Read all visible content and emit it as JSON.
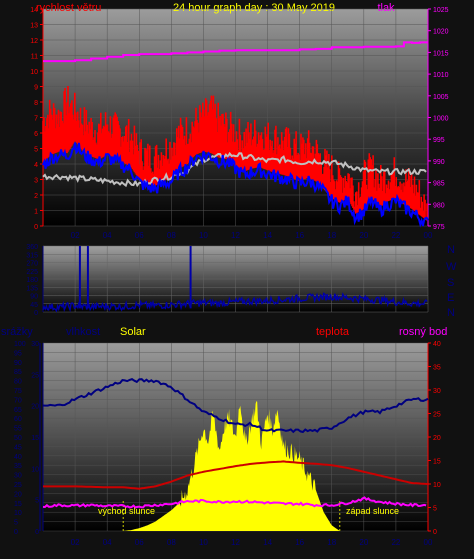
{
  "header": {
    "wind_title": "rychlost větru",
    "center_title": "24 hour graph day : 30 May 2019",
    "pressure_title": "tlak"
  },
  "side_letters": [
    "N",
    "W",
    "S",
    "E",
    "N"
  ],
  "bottom_labels": {
    "rain": "srážky",
    "humidity": "vlhkost",
    "solar": "Solar",
    "temperature": "teplota",
    "dewpoint": "rosný bod",
    "sunrise": "východ slunce",
    "sunset": "západ slunce"
  },
  "colors": {
    "wind_gust": "#ff0000",
    "wind_avg": "#0000ff",
    "wind_mean": "#c0c0c0",
    "pressure": "#ff00ff",
    "direction": "#0000aa",
    "humidity": "#000080",
    "temperature": "#cc0000",
    "dewpoint": "#ff00ff",
    "solar": "#ffff00",
    "title_yellow": "#ffff00",
    "red_text": "#ff0000",
    "axis_blue": "#000080",
    "axis_magenta": "#ff00ff"
  },
  "chart_data": [
    {
      "type": "line",
      "name": "wind-pressure",
      "x_ticks": [
        "02",
        "04",
        "06",
        "08",
        "10",
        "12",
        "14",
        "16",
        "18",
        "20",
        "22",
        "00"
      ],
      "xlim": [
        0,
        24
      ],
      "y_left_ticks": [
        "0",
        "1",
        "2",
        "3",
        "4",
        "5",
        "6",
        "7",
        "8",
        "9",
        "10",
        "11",
        "12",
        "13",
        "14"
      ],
      "ylim_left": [
        0,
        14
      ],
      "y_right_ticks": [
        "975",
        "980",
        "985",
        "990",
        "995",
        "1000",
        "1005",
        "1010",
        "1015",
        "1020",
        "1025"
      ],
      "ylim_right": [
        975,
        1025
      ],
      "series": [
        {
          "key": "gust",
          "x": [
            0,
            0.5,
            1,
            1.5,
            2,
            2.5,
            3,
            3.5,
            4,
            4.5,
            5,
            5.5,
            6,
            6.5,
            7,
            7.5,
            8,
            8.5,
            9,
            9.5,
            10,
            10.5,
            11,
            11.5,
            12,
            12.5,
            13,
            13.5,
            14,
            14.5,
            15,
            15.5,
            16,
            16.5,
            17,
            17.5,
            18,
            18.5,
            19,
            19.5,
            20,
            20.5,
            21,
            21.5,
            22,
            22.5,
            23,
            23.5,
            24
          ],
          "y": [
            6.2,
            6.8,
            6.5,
            7.5,
            6.9,
            6.2,
            5.8,
            5.6,
            6.1,
            5.7,
            5.5,
            5.2,
            4.2,
            3.9,
            3.8,
            4.3,
            4.6,
            5.4,
            5.6,
            6.1,
            6.5,
            6.9,
            6.2,
            5.8,
            5.5,
            5.1,
            5.3,
            5.5,
            5.2,
            5.1,
            4.9,
            4.6,
            4.4,
            4.6,
            4.3,
            3.5,
            3.1,
            2.4,
            2.8,
            1.6,
            2.6,
            3.2,
            2.3,
            2.7,
            2.9,
            2.4,
            2.2,
            1.5,
            0.2
          ]
        },
        {
          "key": "avg",
          "x": [
            0,
            0.5,
            1,
            1.5,
            2,
            2.5,
            3,
            3.5,
            4,
            4.5,
            5,
            5.5,
            6,
            6.5,
            7,
            7.5,
            8,
            8.5,
            9,
            9.5,
            10,
            10.5,
            11,
            11.5,
            12,
            12.5,
            13,
            13.5,
            14,
            14.5,
            15,
            15.5,
            16,
            16.5,
            17,
            17.5,
            18,
            18.5,
            19,
            19.5,
            20,
            20.5,
            21,
            21.5,
            22,
            22.5,
            23,
            23.5,
            24
          ],
          "y": [
            3.9,
            4.4,
            4.6,
            4.5,
            5.3,
            4.6,
            4.3,
            4.1,
            4.4,
            4.2,
            3.9,
            3.6,
            2.8,
            2.5,
            2.4,
            2.7,
            2.9,
            3.5,
            3.8,
            4.4,
            4.6,
            4.5,
            4.2,
            4.1,
            3.7,
            3.3,
            3.5,
            3.6,
            3.4,
            3.2,
            3.1,
            2.9,
            2.7,
            2.9,
            2.7,
            2.2,
            1.6,
            1.3,
            1.6,
            0.6,
            0.9,
            1.6,
            1.0,
            1.4,
            1.6,
            1.2,
            0.9,
            0.5,
            0.1
          ]
        },
        {
          "key": "mean",
          "x": [
            0,
            1,
            2,
            3,
            4,
            5,
            6,
            7,
            8,
            9,
            10,
            11,
            12,
            13,
            14,
            15,
            16,
            17,
            18,
            19,
            20,
            21,
            22,
            23,
            24
          ],
          "y": [
            3.2,
            3.2,
            3.1,
            3.0,
            2.9,
            2.8,
            2.7,
            3.0,
            3.2,
            3.6,
            4.3,
            4.5,
            4.6,
            4.4,
            4.2,
            4.3,
            4.1,
            4.2,
            4.1,
            3.9,
            3.6,
            3.5,
            3.5,
            3.5,
            3.5
          ]
        },
        {
          "key": "pressure",
          "x": [
            0,
            1,
            2,
            3,
            4,
            5,
            6,
            7,
            8,
            9,
            10,
            11,
            12,
            13,
            14,
            15,
            16,
            17,
            18,
            19,
            20,
            21,
            22,
            22.5,
            23,
            23.5,
            24
          ],
          "y": [
            1013,
            1013,
            1013.2,
            1013.6,
            1014,
            1014.4,
            1014.6,
            1014.6,
            1014.8,
            1015,
            1015.2,
            1015.4,
            1015.5,
            1015.5,
            1015.5,
            1015.5,
            1015.7,
            1015.8,
            1016.2,
            1016.2,
            1016.3,
            1016.3,
            1016.4,
            1017.3,
            1017.2,
            1017.3,
            1017.3
          ]
        }
      ]
    },
    {
      "type": "line",
      "name": "wind-direction",
      "x_ticks": [
        "02",
        "04",
        "06",
        "08",
        "10",
        "12",
        "14",
        "16",
        "18",
        "20",
        "22",
        "00"
      ],
      "xlim": [
        0,
        24
      ],
      "y_ticks": [
        "0",
        "45",
        "90",
        "135",
        "180",
        "225",
        "270",
        "315",
        "360"
      ],
      "ylim": [
        0,
        360
      ],
      "series": [
        {
          "key": "direction",
          "x": [
            0,
            1,
            2,
            2.5,
            3,
            4,
            5,
            6,
            7,
            8,
            9,
            10,
            11,
            12,
            13,
            14,
            15,
            16,
            17,
            18,
            19,
            20,
            21,
            22,
            23,
            24
          ],
          "y": [
            30,
            25,
            35,
            30,
            28,
            32,
            30,
            38,
            35,
            40,
            45,
            50,
            48,
            55,
            60,
            62,
            68,
            75,
            80,
            85,
            78,
            72,
            65,
            55,
            48,
            45
          ]
        },
        {
          "key": "spikes",
          "x": [
            2.3,
            2.8,
            9.2
          ],
          "y": [
            360,
            360,
            360
          ]
        }
      ]
    },
    {
      "type": "area",
      "name": "temperature-solar",
      "x_ticks": [
        "02",
        "04",
        "06",
        "08",
        "10",
        "12",
        "14",
        "16",
        "18",
        "20",
        "22",
        "00"
      ],
      "xlim": [
        0,
        24
      ],
      "y_rain_ticks": [
        "0",
        "5",
        "10",
        "15",
        "20",
        "25",
        "30",
        "35",
        "40",
        "45",
        "50",
        "55",
        "60",
        "65",
        "70",
        "75",
        "80",
        "85",
        "90",
        "95",
        "100"
      ],
      "ylim_rain": [
        0,
        100
      ],
      "y_humidity_ticks": [
        "0",
        "5",
        "10",
        "15",
        "20",
        "25",
        "30"
      ],
      "ylim_humidity": [
        0,
        30
      ],
      "y_temp_ticks": [
        "0",
        "5",
        "10",
        "15",
        "20",
        "25",
        "30",
        "35",
        "40"
      ],
      "ylim_temp": [
        0,
        40
      ],
      "series": [
        {
          "key": "humidity",
          "x": [
            0,
            1,
            2,
            3,
            4,
            5,
            6,
            7,
            8,
            9,
            10,
            11,
            12,
            13,
            14,
            15,
            16,
            17,
            18,
            19,
            20,
            21,
            22,
            23,
            24
          ],
          "y": [
            20,
            20,
            21,
            22,
            23,
            24,
            24,
            24,
            23,
            21,
            19,
            18,
            17,
            17,
            16,
            16,
            16,
            16,
            16.5,
            18,
            19,
            19,
            20,
            21,
            21
          ]
        },
        {
          "key": "temperature",
          "x": [
            0,
            1,
            2,
            3,
            4,
            5,
            6,
            7,
            8,
            9,
            10,
            11,
            12,
            13,
            14,
            15,
            16,
            17,
            18,
            19,
            20,
            21,
            22,
            23,
            24
          ],
          "y": [
            9.5,
            9.5,
            9.5,
            9.4,
            9.3,
            9.3,
            9.0,
            9.5,
            10.5,
            11.8,
            12.6,
            13.2,
            13.8,
            14.3,
            14.6,
            14.8,
            14.5,
            14.3,
            14,
            13.4,
            12.6,
            11.8,
            11,
            10.2,
            10
          ]
        },
        {
          "key": "dewpoint",
          "x": [
            0,
            1,
            2,
            3,
            4,
            5,
            6,
            7,
            8,
            9,
            10,
            11,
            12,
            13,
            14,
            15,
            16,
            17,
            18,
            19,
            20,
            21,
            22,
            23,
            24
          ],
          "y": [
            5.2,
            5.5,
            5.4,
            5.5,
            5.3,
            5.3,
            5.2,
            5.5,
            5.8,
            6.3,
            6.4,
            6.2,
            6.3,
            6.2,
            6.0,
            5.8,
            5.8,
            5.5,
            5.5,
            6.0,
            6.9,
            6.2,
            5.8,
            5.5,
            5.5
          ]
        },
        {
          "key": "solar",
          "x": [
            5,
            5.5,
            6,
            6.5,
            7,
            7.5,
            8,
            8.5,
            9,
            9.5,
            10,
            10.3,
            10.6,
            11,
            11.3,
            11.6,
            12,
            12.3,
            12.6,
            13,
            13.3,
            13.6,
            14,
            14.3,
            14.6,
            15,
            15.5,
            16,
            16.5,
            17,
            17.5,
            18,
            18.5
          ],
          "y": [
            0,
            0.5,
            1.5,
            3,
            5,
            8,
            11,
            15,
            22,
            38,
            55,
            48,
            62,
            43,
            56,
            60,
            50,
            70,
            46,
            58,
            68,
            47,
            63,
            54,
            65,
            45,
            42,
            38,
            30,
            22,
            10,
            3,
            0
          ]
        }
      ]
    }
  ]
}
